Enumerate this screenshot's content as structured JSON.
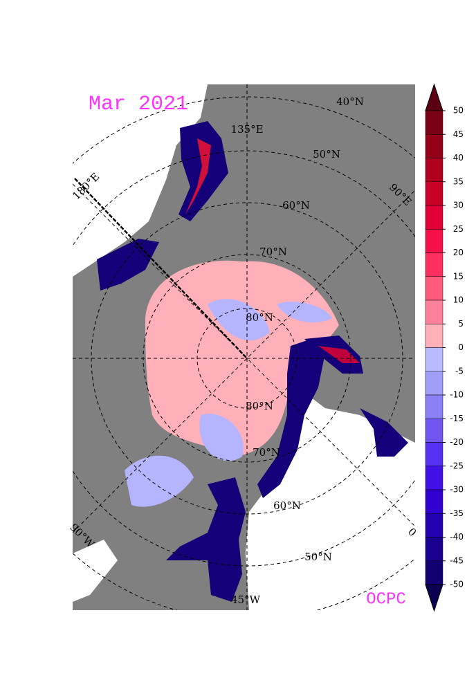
{
  "title": "Mar 2021",
  "credit": "OCPC",
  "latitude_labels": [
    "80°N",
    "80°N",
    "70°N",
    "70°N",
    "60°N",
    "60°N",
    "50°N",
    "50°N",
    "40°N"
  ],
  "longitude_labels": [
    "135°E",
    "180°E",
    "90°E",
    "90°W",
    "0",
    "45°W"
  ],
  "colorbar": {
    "ticks": [
      50,
      45,
      40,
      35,
      30,
      25,
      20,
      15,
      10,
      5,
      0,
      -5,
      -10,
      -15,
      -20,
      -25,
      -30,
      -35,
      -40,
      -45,
      -50
    ],
    "colors": [
      "#5a0010",
      "#7a0015",
      "#950018",
      "#b0001f",
      "#c80028",
      "#e00035",
      "#f5104a",
      "#ff3060",
      "#ff5a7a",
      "#ff8098",
      "#ffb0b8",
      "#babaff",
      "#9f9ff8",
      "#8a80f5",
      "#7055f0",
      "#5530f0",
      "#4010e6",
      "#3000d0",
      "#2300b0",
      "#1a0090",
      "#100070",
      "#0a0050"
    ]
  }
}
